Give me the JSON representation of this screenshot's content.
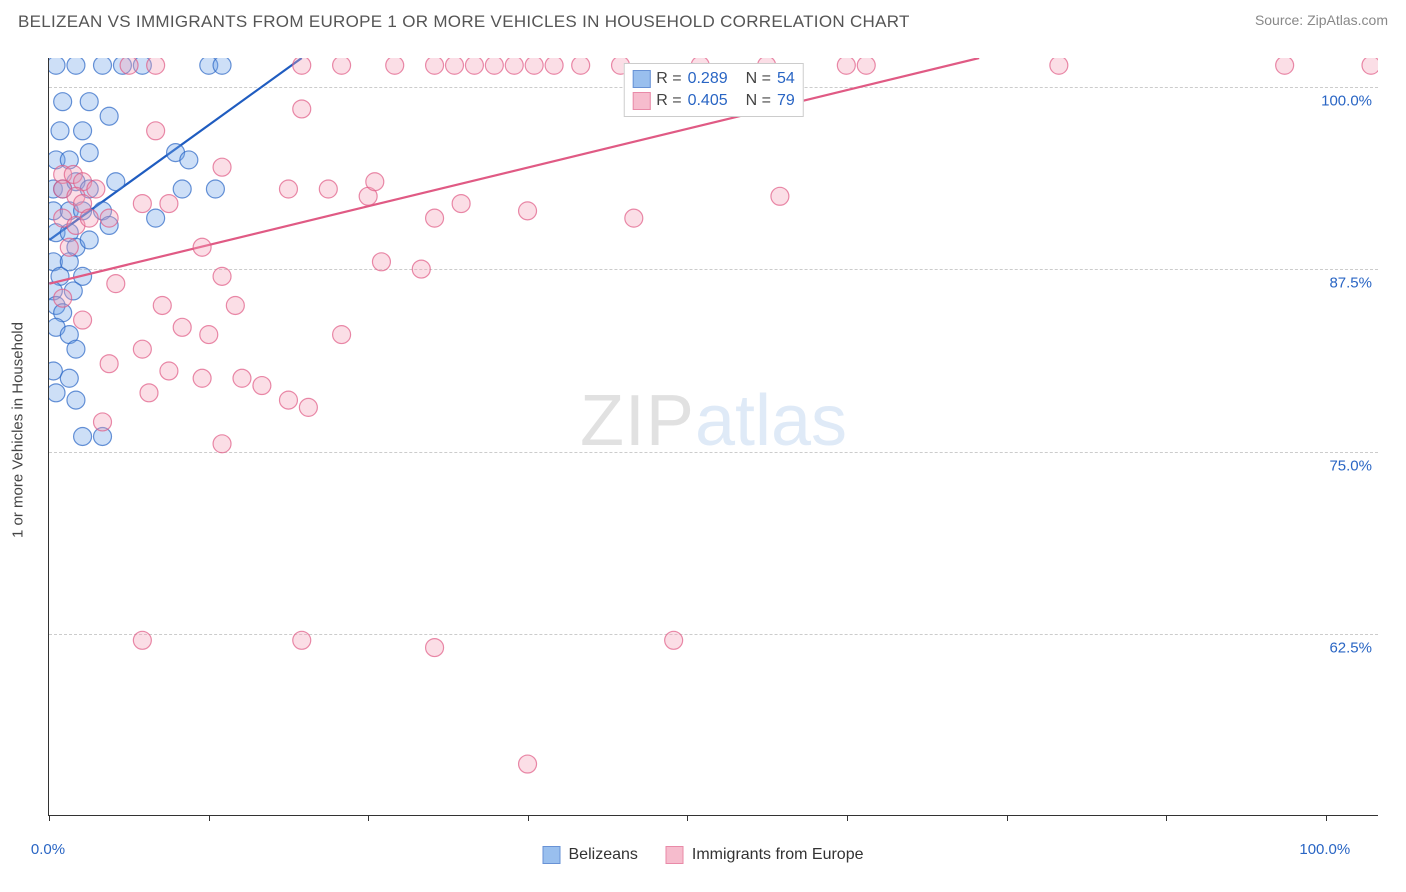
{
  "header": {
    "title": "BELIZEAN VS IMMIGRANTS FROM EUROPE 1 OR MORE VEHICLES IN HOUSEHOLD CORRELATION CHART",
    "source": "Source: ZipAtlas.com"
  },
  "watermark": {
    "part1": "ZIP",
    "part2": "atlas"
  },
  "chart": {
    "type": "scatter",
    "background_color": "#ffffff",
    "grid_color": "#cccccc",
    "axis_color": "#333333",
    "ylabel": "1 or more Vehicles in Household",
    "ylabel_fontsize": 15,
    "tick_fontsize": 15,
    "tick_color": "#2965c4",
    "xlim": [
      0,
      100
    ],
    "ylim": [
      50,
      102
    ],
    "xtick_positions": [
      0,
      12,
      24,
      36,
      48,
      60,
      72,
      84,
      96
    ],
    "xtick_labels_shown": {
      "0": "0.0%",
      "96": "100.0%"
    },
    "ytick_positions": [
      62.5,
      75.0,
      87.5,
      100.0
    ],
    "ytick_labels": [
      "62.5%",
      "75.0%",
      "87.5%",
      "100.0%"
    ],
    "marker_radius": 9,
    "marker_fill_opacity": 0.35,
    "marker_stroke_width": 1.2,
    "trendline_width": 2.2,
    "series": [
      {
        "name": "Belizeans",
        "color_fill": "#6fa4e8",
        "color_stroke": "#2965c4",
        "trendline_color": "#1f5cc0",
        "R": "0.289",
        "N": "54",
        "trendline": {
          "x1": 0,
          "y1": 89.5,
          "x2": 19,
          "y2": 102
        },
        "points": [
          [
            0.5,
            101.5
          ],
          [
            2.0,
            101.5
          ],
          [
            4.0,
            101.5
          ],
          [
            5.5,
            101.5
          ],
          [
            7.0,
            101.5
          ],
          [
            12.0,
            101.5
          ],
          [
            13.0,
            101.5
          ],
          [
            1.0,
            99.0
          ],
          [
            3.0,
            99.0
          ],
          [
            0.8,
            97.0
          ],
          [
            2.5,
            97.0
          ],
          [
            4.5,
            98.0
          ],
          [
            0.5,
            95.0
          ],
          [
            1.5,
            95.0
          ],
          [
            3.0,
            95.5
          ],
          [
            9.5,
            95.5
          ],
          [
            10.5,
            95.0
          ],
          [
            0.3,
            93.0
          ],
          [
            1.0,
            93.0
          ],
          [
            2.0,
            93.5
          ],
          [
            3.0,
            93.0
          ],
          [
            5.0,
            93.5
          ],
          [
            10.0,
            93.0
          ],
          [
            12.5,
            93.0
          ],
          [
            0.3,
            91.5
          ],
          [
            1.5,
            91.5
          ],
          [
            2.5,
            91.5
          ],
          [
            4.0,
            91.5
          ],
          [
            4.5,
            90.5
          ],
          [
            8.0,
            91.0
          ],
          [
            0.5,
            90.0
          ],
          [
            1.5,
            90.0
          ],
          [
            2.0,
            89.0
          ],
          [
            3.0,
            89.5
          ],
          [
            0.3,
            88.0
          ],
          [
            1.5,
            88.0
          ],
          [
            0.8,
            87.0
          ],
          [
            2.5,
            87.0
          ],
          [
            0.3,
            86.0
          ],
          [
            1.8,
            86.0
          ],
          [
            0.5,
            85.0
          ],
          [
            1.0,
            84.5
          ],
          [
            0.5,
            83.5
          ],
          [
            1.5,
            83.0
          ],
          [
            2.0,
            82.0
          ],
          [
            0.3,
            80.5
          ],
          [
            1.5,
            80.0
          ],
          [
            0.5,
            79.0
          ],
          [
            2.0,
            78.5
          ],
          [
            2.5,
            76.0
          ],
          [
            4.0,
            76.0
          ]
        ]
      },
      {
        "name": "Immigrants from Europe",
        "color_fill": "#f3a0b8",
        "color_stroke": "#e05a84",
        "trendline_color": "#e05a84",
        "R": "0.405",
        "N": "79",
        "trendline": {
          "x1": 0,
          "y1": 86.5,
          "x2": 70,
          "y2": 102
        },
        "points": [
          [
            6.0,
            101.5
          ],
          [
            8.0,
            101.5
          ],
          [
            19.0,
            101.5
          ],
          [
            22.0,
            101.5
          ],
          [
            26.0,
            101.5
          ],
          [
            29.0,
            101.5
          ],
          [
            30.5,
            101.5
          ],
          [
            32.0,
            101.5
          ],
          [
            33.5,
            101.5
          ],
          [
            35.0,
            101.5
          ],
          [
            36.5,
            101.5
          ],
          [
            38.0,
            101.5
          ],
          [
            40.0,
            101.5
          ],
          [
            43.0,
            101.5
          ],
          [
            49.0,
            101.5
          ],
          [
            54.0,
            101.5
          ],
          [
            60.0,
            101.5
          ],
          [
            61.5,
            101.5
          ],
          [
            76.0,
            101.5
          ],
          [
            93.0,
            101.5
          ],
          [
            99.5,
            101.5
          ],
          [
            19.0,
            98.5
          ],
          [
            8.0,
            97.0
          ],
          [
            13.0,
            94.5
          ],
          [
            1.0,
            94.0
          ],
          [
            1.8,
            94.0
          ],
          [
            2.5,
            93.5
          ],
          [
            1.0,
            93.0
          ],
          [
            2.0,
            92.5
          ],
          [
            2.5,
            92.0
          ],
          [
            3.5,
            93.0
          ],
          [
            7.0,
            92.0
          ],
          [
            9.0,
            92.0
          ],
          [
            18.0,
            93.0
          ],
          [
            21.0,
            93.0
          ],
          [
            24.0,
            92.5
          ],
          [
            24.5,
            93.5
          ],
          [
            31.0,
            92.0
          ],
          [
            1.0,
            91.0
          ],
          [
            2.0,
            90.5
          ],
          [
            3.0,
            91.0
          ],
          [
            4.5,
            91.0
          ],
          [
            29.0,
            91.0
          ],
          [
            36.0,
            91.5
          ],
          [
            44.0,
            91.0
          ],
          [
            55.0,
            92.5
          ],
          [
            1.5,
            89.0
          ],
          [
            11.5,
            89.0
          ],
          [
            25.0,
            88.0
          ],
          [
            28.0,
            87.5
          ],
          [
            5.0,
            86.5
          ],
          [
            13.0,
            87.0
          ],
          [
            1.0,
            85.5
          ],
          [
            8.5,
            85.0
          ],
          [
            14.0,
            85.0
          ],
          [
            2.5,
            84.0
          ],
          [
            10.0,
            83.5
          ],
          [
            12.0,
            83.0
          ],
          [
            22.0,
            83.0
          ],
          [
            7.0,
            82.0
          ],
          [
            4.5,
            81.0
          ],
          [
            9.0,
            80.5
          ],
          [
            11.5,
            80.0
          ],
          [
            14.5,
            80.0
          ],
          [
            7.5,
            79.0
          ],
          [
            16.0,
            79.5
          ],
          [
            18.0,
            78.5
          ],
          [
            19.5,
            78.0
          ],
          [
            4.0,
            77.0
          ],
          [
            13.0,
            75.5
          ],
          [
            7.0,
            62.0
          ],
          [
            19.0,
            62.0
          ],
          [
            29.0,
            61.5
          ],
          [
            47.0,
            62.0
          ],
          [
            36.0,
            53.5
          ]
        ]
      }
    ]
  },
  "legend_bottom": {
    "items": [
      {
        "label": "Belizeans",
        "fill": "#6fa4e8",
        "stroke": "#2965c4"
      },
      {
        "label": "Immigrants from Europe",
        "fill": "#f3a0b8",
        "stroke": "#e05a84"
      }
    ]
  }
}
